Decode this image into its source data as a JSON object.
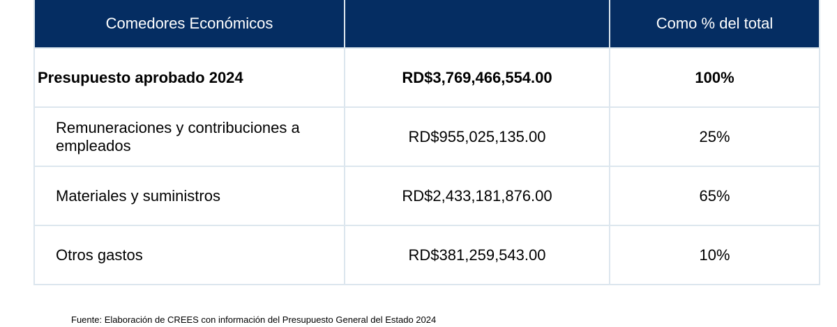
{
  "table": {
    "headers": [
      "Comedores Económicos",
      "",
      "Como % del total"
    ],
    "rows": [
      {
        "label": "Presupuesto aprobado 2024",
        "amount": "RD$3,769,466,554.00",
        "percent": "100%",
        "total": true
      },
      {
        "label": "Remuneraciones y contribuciones a empleados",
        "amount": "RD$955,025,135.00",
        "percent": "25%"
      },
      {
        "label": "Materiales y suministros",
        "amount": "RD$2,433,181,876.00",
        "percent": "65%"
      },
      {
        "label": "Otros gastos",
        "amount": "RD$381,259,543.00",
        "percent": "10%"
      }
    ]
  },
  "colors": {
    "header_bg": "#052d62",
    "header_text": "#ffffff",
    "border": "#dce6ee"
  },
  "source": "Fuente: Elaboración de CREES con información del Presupuesto General del Estado 2024"
}
